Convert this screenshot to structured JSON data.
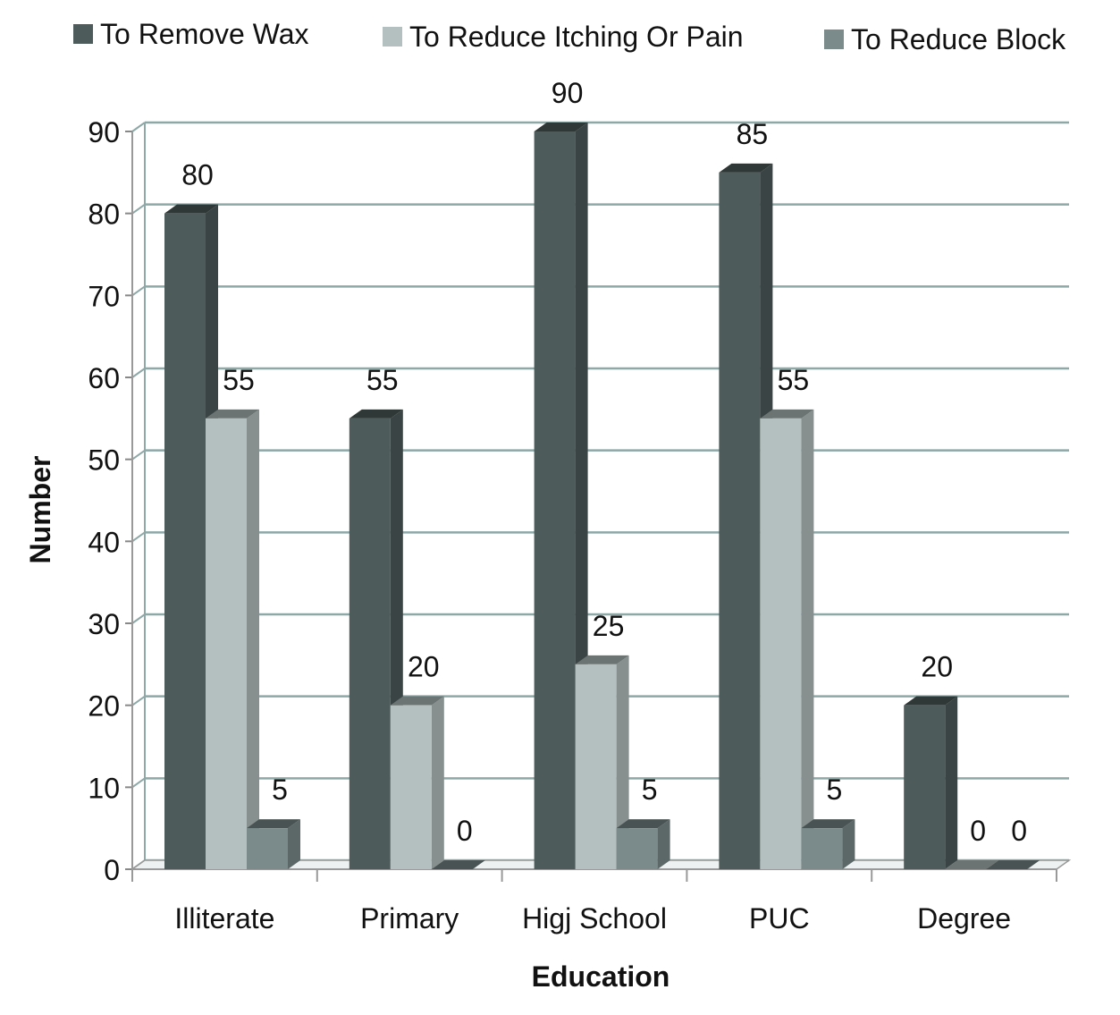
{
  "chart_data": {
    "type": "bar",
    "title": "",
    "xlabel": "Education",
    "ylabel": "Number",
    "ylim": [
      0,
      90
    ],
    "yticks": [
      0,
      10,
      20,
      30,
      40,
      50,
      60,
      70,
      80,
      90
    ],
    "grid": true,
    "legend_position": "top",
    "categories": [
      "Illiterate",
      "Primary",
      "Higj School",
      "PUC",
      "Degree"
    ],
    "series": [
      {
        "name": "To Remove Wax",
        "color": "#4e5b5b",
        "values": [
          80,
          55,
          90,
          85,
          20
        ]
      },
      {
        "name": "To Reduce Itching Or Pain",
        "color": "#b4c0bf",
        "values": [
          55,
          20,
          25,
          55,
          0
        ]
      },
      {
        "name": "To Reduce Block",
        "color": "#7b8b8b",
        "values": [
          5,
          0,
          5,
          5,
          0
        ]
      }
    ]
  }
}
